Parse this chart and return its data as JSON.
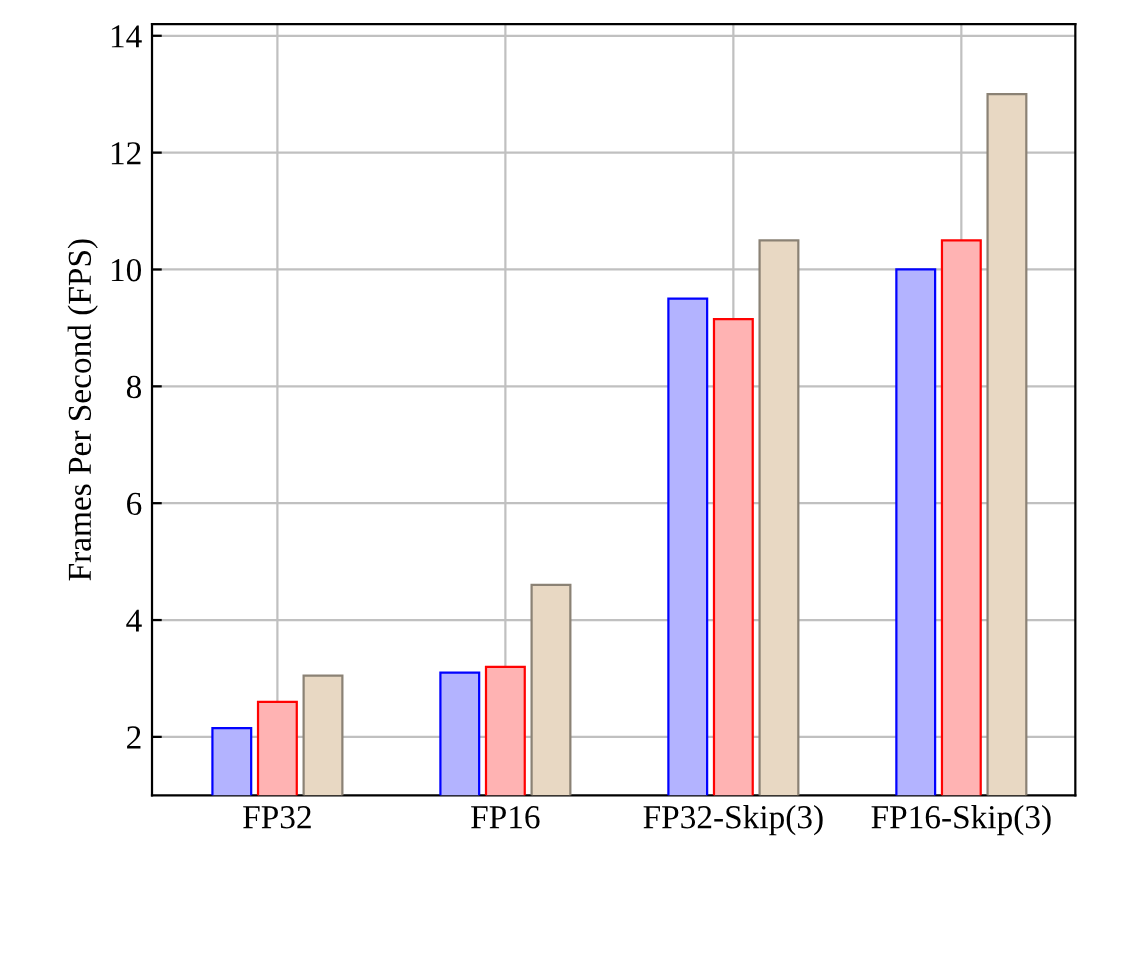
{
  "chart_data": {
    "type": "bar",
    "ylabel": "Frames Per Second (FPS)",
    "categories": [
      "FP32",
      "FP16",
      "FP32-Skip(3)",
      "FP16-Skip(3)"
    ],
    "series": [
      {
        "color": "#b3b3ff",
        "values": [
          2.15,
          3.1,
          9.5,
          10.0
        ]
      },
      {
        "color": "#ffb3b3",
        "values": [
          2.6,
          3.2,
          9.15,
          10.5
        ]
      },
      {
        "color": "#e8d8c3",
        "values": [
          3.05,
          4.6,
          10.5,
          13.0
        ]
      }
    ],
    "ylim": [
      1,
      14.2
    ],
    "yticks": [
      2,
      4,
      6,
      8,
      10,
      12,
      14
    ],
    "grid": true
  }
}
